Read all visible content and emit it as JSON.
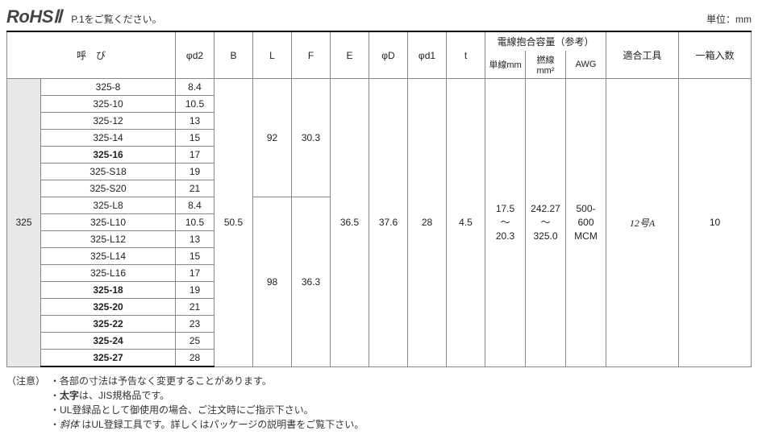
{
  "header": {
    "rohs_label": "RoHSⅡ",
    "note": "P.1をご覧ください。",
    "unit": "単位：mm"
  },
  "columns": {
    "yobi": "呼　び",
    "d2": "φd2",
    "B": "B",
    "L": "L",
    "F": "F",
    "E": "E",
    "D": "φD",
    "d1": "φd1",
    "t": "t",
    "wire_group": "電線抱合容量（参考）",
    "tansen": "単線mm",
    "yorisen": "撚線mm²",
    "awg": "AWG",
    "tool": "適合工具",
    "box_qty": "一箱入数"
  },
  "series": "325",
  "rows": [
    {
      "model": "325-8",
      "d2": "8.4",
      "bold": false
    },
    {
      "model": "325-10",
      "d2": "10.5",
      "bold": false
    },
    {
      "model": "325-12",
      "d2": "13",
      "bold": false
    },
    {
      "model": "325-14",
      "d2": "15",
      "bold": false
    },
    {
      "model": "325-16",
      "d2": "17",
      "bold": true
    },
    {
      "model": "325-S18",
      "d2": "19",
      "bold": false
    },
    {
      "model": "325-S20",
      "d2": "21",
      "bold": false
    },
    {
      "model": "325-L8",
      "d2": "8.4",
      "bold": false
    },
    {
      "model": "325-L10",
      "d2": "10.5",
      "bold": false
    },
    {
      "model": "325-L12",
      "d2": "13",
      "bold": false
    },
    {
      "model": "325-L14",
      "d2": "15",
      "bold": false
    },
    {
      "model": "325-L16",
      "d2": "17",
      "bold": false
    },
    {
      "model": "325-18",
      "d2": "19",
      "bold": true
    },
    {
      "model": "325-20",
      "d2": "21",
      "bold": true
    },
    {
      "model": "325-22",
      "d2": "23",
      "bold": true
    },
    {
      "model": "325-24",
      "d2": "25",
      "bold": true
    },
    {
      "model": "325-27",
      "d2": "28",
      "bold": true
    }
  ],
  "merged": {
    "B": "50.5",
    "L_top": "92",
    "F_top": "30.3",
    "L_bot": "98",
    "F_bot": "36.3",
    "E": "36.5",
    "D": "37.6",
    "d1": "28",
    "t": "4.5",
    "tansen": "17.5\n〜\n20.3",
    "yorisen": "242.27\n〜\n325.0",
    "awg": "500-600\nMCM",
    "tool": "12号A",
    "box_qty": "10"
  },
  "notes": {
    "label": "（注意）",
    "items": [
      {
        "text": "・各部の寸法は予告なく変更することがあります。"
      },
      {
        "html": "・<span class='b'>太字</span>は、JIS規格品です。"
      },
      {
        "text": "・UL登録品として御使用の場合、ご注文時にご指示下さい。"
      },
      {
        "html": "・<span class='i'>斜体</span> はUL登録工具です。詳しくはパッケージの説明書をご覧下さい。"
      }
    ]
  }
}
